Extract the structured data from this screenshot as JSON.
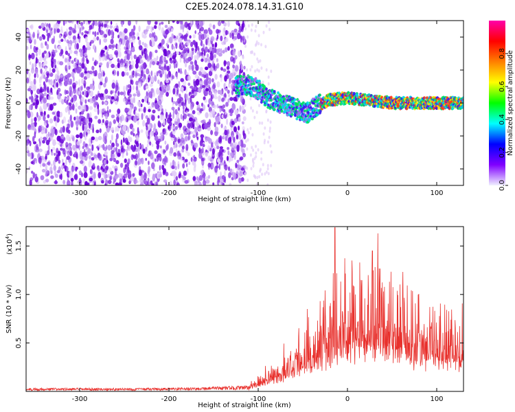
{
  "title": "C2E5.2024.078.14.31.G10",
  "colors": {
    "snr_line": "#e8302c",
    "scatter_palette": [
      "#6a00d8",
      "#7b1fe0",
      "#9b55ea",
      "#c29af2",
      "#e2cdf8"
    ],
    "colorbar_stops": [
      "#f0f0ff",
      "#8000ff",
      "#0000ff",
      "#00ffff",
      "#00ff00",
      "#ffff00",
      "#ff8000",
      "#ff0000",
      "#ff00aa"
    ]
  },
  "chart_data": [
    {
      "type": "heatmap",
      "description_of_plot": "Spectrogram-like scatter of spectral amplitude vs height and frequency",
      "xlabel": "Height of straight line (km)",
      "ylabel": "Frequency (Hz)",
      "xlim": [
        -360,
        130
      ],
      "ylim": [
        -50,
        50
      ],
      "xticks": [
        -300,
        -200,
        -100,
        0,
        100
      ],
      "yticks": [
        -40,
        -20,
        0,
        20,
        40
      ],
      "colorbar": {
        "label": "Normalized spectral amplitude",
        "range": [
          0.0,
          1.0
        ],
        "ticks": [
          "0.0",
          "0.2",
          "0.4",
          "0.6",
          "0.8"
        ]
      },
      "noise_region_x": [
        -360,
        -115
      ],
      "signal_track": [
        {
          "x": -125,
          "y": 10
        },
        {
          "x": -110,
          "y": 11
        },
        {
          "x": -100,
          "y": 8
        },
        {
          "x": -90,
          "y": 3
        },
        {
          "x": -75,
          "y": 0
        },
        {
          "x": -60,
          "y": -3
        },
        {
          "x": -45,
          "y": -6
        },
        {
          "x": -35,
          "y": -2
        },
        {
          "x": -20,
          "y": 2
        },
        {
          "x": 0,
          "y": 3
        },
        {
          "x": 20,
          "y": 2
        },
        {
          "x": 50,
          "y": 0
        },
        {
          "x": 80,
          "y": 0
        },
        {
          "x": 110,
          "y": 0
        },
        {
          "x": 130,
          "y": 0
        }
      ]
    },
    {
      "type": "line",
      "xlabel": "Height of straight line (km)",
      "ylabel": "SNR (10 * v/v)",
      "yscale_label": "(x10",
      "yscale_exp": "4",
      "yscale_close": ")",
      "xlim": [
        -360,
        130
      ],
      "ylim": [
        0,
        1.7
      ],
      "xticks": [
        -300,
        -200,
        -100,
        0,
        100
      ],
      "yticks": [
        "0.5",
        "1.0",
        "1.5"
      ],
      "envelope": [
        {
          "x": -360,
          "y": 0.03
        },
        {
          "x": -200,
          "y": 0.03
        },
        {
          "x": -110,
          "y": 0.05
        },
        {
          "x": -80,
          "y": 0.2
        },
        {
          "x": -60,
          "y": 0.3
        },
        {
          "x": -40,
          "y": 0.45
        },
        {
          "x": -20,
          "y": 0.6
        },
        {
          "x": 0,
          "y": 0.75
        },
        {
          "x": 20,
          "y": 0.8
        },
        {
          "x": 40,
          "y": 0.75
        },
        {
          "x": 60,
          "y": 0.65
        },
        {
          "x": 80,
          "y": 0.58
        },
        {
          "x": 100,
          "y": 0.52
        },
        {
          "x": 130,
          "y": 0.45
        }
      ],
      "peaks": [
        {
          "x": -14,
          "y": 1.69
        },
        {
          "x": 34,
          "y": 1.63
        },
        {
          "x": 28,
          "y": 1.45
        },
        {
          "x": 5,
          "y": 1.35
        },
        {
          "x": -45,
          "y": 0.85
        }
      ]
    }
  ]
}
